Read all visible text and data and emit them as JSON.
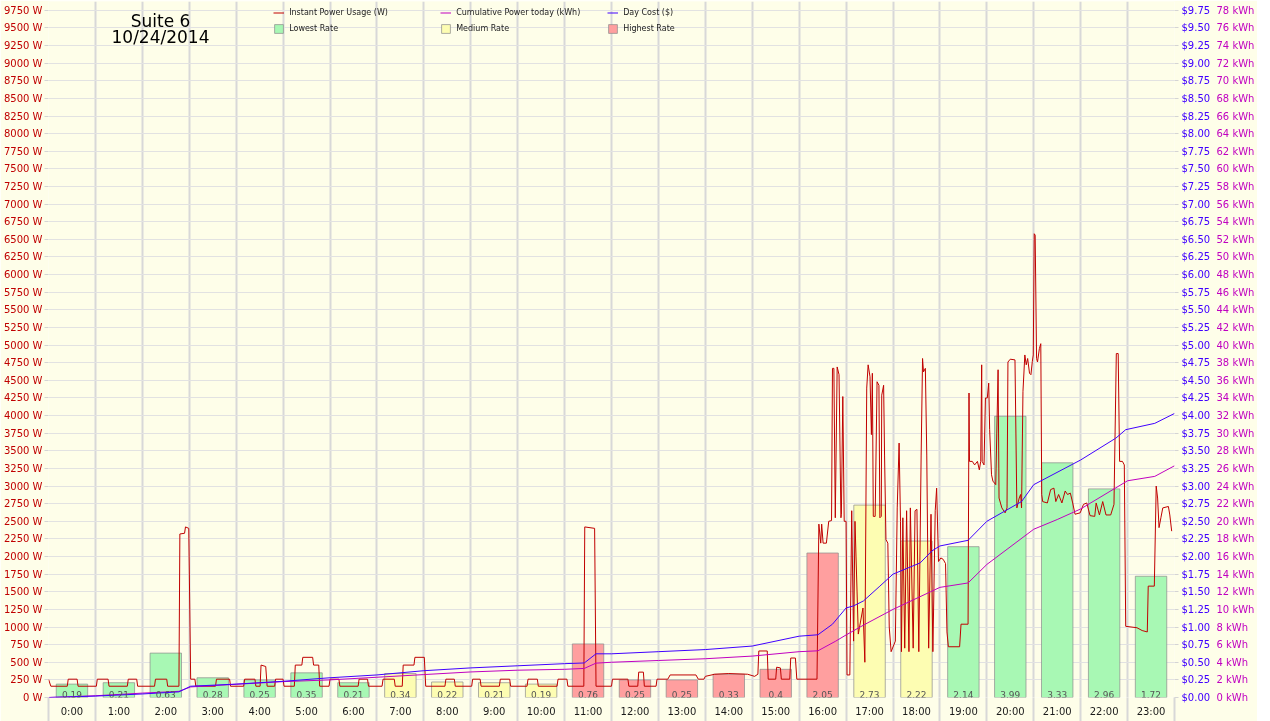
{
  "chart_data": {
    "type": "bar",
    "title": "Suite 6",
    "subtitle": "10/24/2014",
    "legend": "top",
    "grid": true,
    "xlim": [
      -0.5,
      23.5
    ],
    "xticks": [
      {
        "value": -0.5,
        "label": null
      },
      {
        "value": 0,
        "label": "0:00"
      },
      {
        "value": 0.5,
        "label": null
      },
      {
        "value": 1,
        "label": "1:00"
      },
      {
        "value": 1.5,
        "label": null
      },
      {
        "value": 2,
        "label": "2:00"
      },
      {
        "value": 2.5,
        "label": null
      },
      {
        "value": 3,
        "label": "3:00"
      },
      {
        "value": 3.5,
        "label": null
      },
      {
        "value": 4,
        "label": "4:00"
      },
      {
        "value": 4.5,
        "label": null
      },
      {
        "value": 5,
        "label": "5:00"
      },
      {
        "value": 5.5,
        "label": null
      },
      {
        "value": 6,
        "label": "6:00"
      },
      {
        "value": 6.5,
        "label": null
      },
      {
        "value": 7,
        "label": "7:00"
      },
      {
        "value": 7.5,
        "label": null
      },
      {
        "value": 8,
        "label": "8:00"
      },
      {
        "value": 8.5,
        "label": null
      },
      {
        "value": 9,
        "label": "9:00"
      },
      {
        "value": 9.5,
        "label": null
      },
      {
        "value": 10,
        "label": "10:00"
      },
      {
        "value": 10.5,
        "label": null
      },
      {
        "value": 11,
        "label": "11:00"
      },
      {
        "value": 11.5,
        "label": null
      },
      {
        "value": 12,
        "label": "12:00"
      },
      {
        "value": 12.5,
        "label": null
      },
      {
        "value": 13,
        "label": "13:00"
      },
      {
        "value": 13.5,
        "label": null
      },
      {
        "value": 14,
        "label": "14:00"
      },
      {
        "value": 14.5,
        "label": null
      },
      {
        "value": 15,
        "label": "15:00"
      },
      {
        "value": 15.5,
        "label": null
      },
      {
        "value": 16,
        "label": "16:00"
      },
      {
        "value": 16.5,
        "label": null
      },
      {
        "value": 17,
        "label": "17:00"
      },
      {
        "value": 17.5,
        "label": null
      },
      {
        "value": 18,
        "label": "18:00"
      },
      {
        "value": 18.5,
        "label": null
      },
      {
        "value": 19,
        "label": "19:00"
      },
      {
        "value": 19.5,
        "label": null
      },
      {
        "value": 20,
        "label": "20:00"
      },
      {
        "value": 20.5,
        "label": null
      },
      {
        "value": 21,
        "label": "21:00"
      },
      {
        "value": 21.5,
        "label": null
      },
      {
        "value": 22,
        "label": "22:00"
      },
      {
        "value": 22.5,
        "label": null
      },
      {
        "value": 23,
        "label": "23:00"
      },
      {
        "value": 23.5,
        "label": null
      }
    ],
    "ylim": [
      0,
      9875
    ],
    "yticks": [
      {
        "value": 0,
        "label": "0 W"
      },
      {
        "value": 250,
        "label": "250 W"
      },
      {
        "value": 500,
        "label": "500 W"
      },
      {
        "value": 750,
        "label": "750 W"
      },
      {
        "value": 1000,
        "label": "1000 W"
      },
      {
        "value": 1250,
        "label": "1250 W"
      },
      {
        "value": 1500,
        "label": "1500 W"
      },
      {
        "value": 1750,
        "label": "1750 W"
      },
      {
        "value": 2000,
        "label": "2000 W"
      },
      {
        "value": 2250,
        "label": "2250 W"
      },
      {
        "value": 2500,
        "label": "2500 W"
      },
      {
        "value": 2750,
        "label": "2750 W"
      },
      {
        "value": 3000,
        "label": "3000 W"
      },
      {
        "value": 3250,
        "label": "3250 W"
      },
      {
        "value": 3500,
        "label": "3500 W"
      },
      {
        "value": 3750,
        "label": "3750 W"
      },
      {
        "value": 4000,
        "label": "4000 W"
      },
      {
        "value": 4250,
        "label": "4250 W"
      },
      {
        "value": 4500,
        "label": "4500 W"
      },
      {
        "value": 4750,
        "label": "4750 W"
      },
      {
        "value": 5000,
        "label": "5000 W"
      },
      {
        "value": 5250,
        "label": "5250 W"
      },
      {
        "value": 5500,
        "label": "5500 W"
      },
      {
        "value": 5750,
        "label": "5750 W"
      },
      {
        "value": 6000,
        "label": "6000 W"
      },
      {
        "value": 6250,
        "label": "6250 W"
      },
      {
        "value": 6500,
        "label": "6500 W"
      },
      {
        "value": 6750,
        "label": "6750 W"
      },
      {
        "value": 7000,
        "label": "7000 W"
      },
      {
        "value": 7250,
        "label": "7250 W"
      },
      {
        "value": 7500,
        "label": "7500 W"
      },
      {
        "value": 7750,
        "label": "7750 W"
      },
      {
        "value": 8000,
        "label": "8000 W"
      },
      {
        "value": 8250,
        "label": "8250 W"
      },
      {
        "value": 8500,
        "label": "8500 W"
      },
      {
        "value": 8750,
        "label": "8750 W"
      },
      {
        "value": 9000,
        "label": "9000 W"
      },
      {
        "value": 9250,
        "label": "9250 W"
      },
      {
        "value": 9500,
        "label": "9500 W"
      },
      {
        "value": 9750,
        "label": "9750 W"
      }
    ],
    "y2lim": [
      0,
      9.875
    ],
    "y2ticks": [
      {
        "value": 0,
        "label": "$0.00"
      },
      {
        "value": 0.25,
        "label": "$0.25"
      },
      {
        "value": 0.5,
        "label": "$0.50"
      },
      {
        "value": 0.75,
        "label": "$0.75"
      },
      {
        "value": 1,
        "label": "$1.00"
      },
      {
        "value": 1.25,
        "label": "$1.25"
      },
      {
        "value": 1.5,
        "label": "$1.50"
      },
      {
        "value": 1.75,
        "label": "$1.75"
      },
      {
        "value": 2,
        "label": "$2.00"
      },
      {
        "value": 2.25,
        "label": "$2.25"
      },
      {
        "value": 2.5,
        "label": "$2.50"
      },
      {
        "value": 2.75,
        "label": "$2.75"
      },
      {
        "value": 3,
        "label": "$3.00"
      },
      {
        "value": 3.25,
        "label": "$3.25"
      },
      {
        "value": 3.5,
        "label": "$3.50"
      },
      {
        "value": 3.75,
        "label": "$3.75"
      },
      {
        "value": 4,
        "label": "$4.00"
      },
      {
        "value": 4.25,
        "label": "$4.25"
      },
      {
        "value": 4.5,
        "label": "$4.50"
      },
      {
        "value": 4.75,
        "label": "$4.75"
      },
      {
        "value": 5,
        "label": "$5.00"
      },
      {
        "value": 5.25,
        "label": "$5.25"
      },
      {
        "value": 5.5,
        "label": "$5.50"
      },
      {
        "value": 5.75,
        "label": "$5.75"
      },
      {
        "value": 6,
        "label": "$6.00"
      },
      {
        "value": 6.25,
        "label": "$6.25"
      },
      {
        "value": 6.5,
        "label": "$6.50"
      },
      {
        "value": 6.75,
        "label": "$6.75"
      },
      {
        "value": 7,
        "label": "$7.00"
      },
      {
        "value": 7.25,
        "label": "$7.25"
      },
      {
        "value": 7.5,
        "label": "$7.50"
      },
      {
        "value": 7.75,
        "label": "$7.75"
      },
      {
        "value": 8,
        "label": "$8.00"
      },
      {
        "value": 8.25,
        "label": "$8.25"
      },
      {
        "value": 8.5,
        "label": "$8.50"
      },
      {
        "value": 8.75,
        "label": "$8.75"
      },
      {
        "value": 9,
        "label": "$9.00"
      },
      {
        "value": 9.25,
        "label": "$9.25"
      },
      {
        "value": 9.5,
        "label": "$9.50"
      },
      {
        "value": 9.75,
        "label": "$9.75"
      }
    ],
    "y3lim": [
      0,
      79
    ],
    "y3ticks": [
      {
        "value": 0,
        "label": "0 kWh"
      },
      {
        "value": 2,
        "label": "2 kWh"
      },
      {
        "value": 4,
        "label": "4 kWh"
      },
      {
        "value": 6,
        "label": "6 kWh"
      },
      {
        "value": 8,
        "label": "8 kWh"
      },
      {
        "value": 10,
        "label": "10 kWh"
      },
      {
        "value": 12,
        "label": "12 kWh"
      },
      {
        "value": 14,
        "label": "14 kWh"
      },
      {
        "value": 16,
        "label": "16 kWh"
      },
      {
        "value": 18,
        "label": "18 kWh"
      },
      {
        "value": 20,
        "label": "20 kWh"
      },
      {
        "value": 22,
        "label": "22 kWh"
      },
      {
        "value": 24,
        "label": "24 kWh"
      },
      {
        "value": 26,
        "label": "26 kWh"
      },
      {
        "value": 28,
        "label": "28 kWh"
      },
      {
        "value": 30,
        "label": "30 kWh"
      },
      {
        "value": 32,
        "label": "32 kWh"
      },
      {
        "value": 34,
        "label": "34 kWh"
      },
      {
        "value": 36,
        "label": "36 kWh"
      },
      {
        "value": 38,
        "label": "38 kWh"
      },
      {
        "value": 40,
        "label": "40 kWh"
      },
      {
        "value": 42,
        "label": "42 kWh"
      },
      {
        "value": 44,
        "label": "44 kWh"
      },
      {
        "value": 46,
        "label": "46 kWh"
      },
      {
        "value": 48,
        "label": "48 kWh"
      },
      {
        "value": 50,
        "label": "50 kWh"
      },
      {
        "value": 52,
        "label": "52 kWh"
      },
      {
        "value": 54,
        "label": "54 kWh"
      },
      {
        "value": 56,
        "label": "56 kWh"
      },
      {
        "value": 58,
        "label": "58 kWh"
      },
      {
        "value": 60,
        "label": "60 kWh"
      },
      {
        "value": 62,
        "label": "62 kWh"
      },
      {
        "value": 64,
        "label": "64 kWh"
      },
      {
        "value": 66,
        "label": "66 kWh"
      },
      {
        "value": 68,
        "label": "68 kWh"
      },
      {
        "value": 70,
        "label": "70 kWh"
      },
      {
        "value": 72,
        "label": "72 kWh"
      },
      {
        "value": 74,
        "label": "74 kWh"
      },
      {
        "value": 76,
        "label": "76 kWh"
      },
      {
        "value": 78,
        "label": "78 kWh"
      }
    ],
    "series": [
      {
        "name": "Instant Power Usage (W)",
        "type": "line",
        "color": "#c00000",
        "x": [
          -0.5,
          -0.45,
          -0.1,
          -0.08,
          0.11,
          0.13,
          0.52,
          0.54,
          0.77,
          0.79,
          1.18,
          1.2,
          1.38,
          1.4,
          1.76,
          1.78,
          2.02,
          2.04,
          2.28,
          2.3,
          2.4,
          2.42,
          2.49,
          2.53,
          2.62,
          2.64,
          3.06,
          3.08,
          3.36,
          3.38,
          3.66,
          3.68,
          3.9,
          3.92,
          4.01,
          4.03,
          4.13,
          4.16,
          4.32,
          4.34,
          4.5,
          4.52,
          4.74,
          4.76,
          4.9,
          4.92,
          5.13,
          5.15,
          5.26,
          5.28,
          5.48,
          5.5,
          5.69,
          5.71,
          6.1,
          6.12,
          6.3,
          6.32,
          6.61,
          6.63,
          6.87,
          6.89,
          7.04,
          7.06,
          7.29,
          7.31,
          7.51,
          7.54,
          7.95,
          7.97,
          8.15,
          8.17,
          8.52,
          8.54,
          8.7,
          8.72,
          9.11,
          9.13,
          9.33,
          9.35,
          9.7,
          9.72,
          9.92,
          9.94,
          10.34,
          10.36,
          10.55,
          10.57,
          10.91,
          10.93,
          11.14,
          11.17,
          11.5,
          11.52,
          11.85,
          11.87,
          12.06,
          12.08,
          12.18,
          12.2,
          12.45,
          12.47,
          12.7,
          12.75,
          13.3,
          13.35,
          13.47,
          13.5,
          13.7,
          14,
          14.4,
          14.55,
          14.62,
          14.64,
          14.82,
          14.84,
          15,
          15.02,
          15.1,
          15.12,
          15.3,
          15.32,
          15.42,
          15.45,
          15.88,
          15.92,
          15.96,
          15.98,
          16.01,
          16.08,
          16.13,
          16.19,
          16.21,
          16.24,
          16.27,
          16.31,
          16.35,
          16.39,
          16.4,
          16.43,
          16.46,
          16.5,
          16.52,
          16.58,
          16.62,
          16.66,
          16.69,
          16.76,
          16.86,
          16.9,
          16.94,
          16.97,
          17.01,
          17.04,
          17.06,
          17.08,
          17.12,
          17.16,
          17.2,
          17.22,
          17.25,
          17.26,
          17.3,
          17.32,
          17.35,
          17.39,
          17.42,
          17.46,
          17.55,
          17.59,
          17.63,
          17.66,
          17.68,
          17.71,
          17.75,
          17.79,
          17.84,
          17.87,
          17.93,
          17.97,
          18.01,
          18.05,
          18.1,
          18.13,
          18.15,
          18.19,
          18.22,
          18.26,
          18.31,
          18.35,
          18.4,
          18.43,
          18.47,
          18.52,
          18.57,
          18.62,
          18.65,
          18.68,
          18.92,
          18.95,
          19.1,
          19.12,
          19.13,
          19.19,
          19.24,
          19.3,
          19.34,
          19.37,
          19.39,
          19.4,
          19.44,
          19.47,
          19.51,
          19.54,
          19.56,
          19.6,
          19.63,
          19.69,
          19.74,
          19.76,
          19.82,
          19.89,
          19.93,
          19.95,
          20,
          20.1,
          20.14,
          20.19,
          20.22,
          20.24,
          20.27,
          20.31,
          20.34,
          20.37,
          20.41,
          20.44,
          20.47,
          20.49,
          20.51,
          20.53,
          20.56,
          20.58,
          20.62,
          20.65,
          20.67,
          20.69,
          20.79,
          20.86,
          20.93,
          20.97,
          21.03,
          21.1,
          21.17,
          21.22,
          21.28,
          21.33,
          21.38,
          21.49,
          21.56,
          21.63,
          21.7,
          21.8,
          21.83,
          21.9,
          21.97,
          22.04,
          22.14,
          22.21,
          22.26,
          22.3,
          22.33,
          22.39,
          22.43,
          22.46,
          22.7,
          22.81,
          22.92,
          22.94,
          23.07,
          23.11,
          23.14,
          23.17,
          23.21,
          23.25,
          23.37,
          23.4,
          23.44
        ],
        "values": [
          260,
          160,
          160,
          260,
          260,
          160,
          160,
          260,
          260,
          160,
          160,
          260,
          260,
          160,
          160,
          260,
          260,
          160,
          160,
          2320,
          2330,
          2420,
          2400,
          260,
          260,
          160,
          160,
          260,
          260,
          160,
          160,
          260,
          260,
          160,
          160,
          460,
          440,
          160,
          160,
          260,
          260,
          160,
          160,
          460,
          460,
          570,
          570,
          460,
          460,
          160,
          160,
          260,
          260,
          160,
          160,
          260,
          260,
          160,
          160,
          260,
          260,
          160,
          160,
          460,
          460,
          570,
          570,
          160,
          160,
          260,
          260,
          160,
          160,
          260,
          260,
          160,
          160,
          260,
          260,
          160,
          160,
          260,
          260,
          160,
          160,
          260,
          260,
          160,
          160,
          2420,
          2400,
          160,
          160,
          260,
          260,
          160,
          160,
          360,
          360,
          160,
          160,
          260,
          260,
          320,
          320,
          260,
          260,
          300,
          330,
          340,
          330,
          300,
          330,
          660,
          660,
          260,
          260,
          430,
          420,
          260,
          260,
          560,
          560,
          260,
          260,
          2460,
          2190,
          2460,
          2190,
          2190,
          2500,
          2510,
          4670,
          4670,
          2550,
          4690,
          4580,
          2550,
          2600,
          4270,
          2500,
          2500,
          320,
          320,
          2650,
          800,
          2500,
          900,
          1270,
          500,
          4390,
          4720,
          4550,
          3730,
          4600,
          2570,
          2570,
          4480,
          4430,
          2550,
          2570,
          4290,
          4430,
          3440,
          2240,
          2190,
          1000,
          650,
          800,
          2690,
          3610,
          2500,
          650,
          2550,
          700,
          2650,
          650,
          2690,
          700,
          2650,
          2670,
          650,
          3440,
          4810,
          4620,
          4670,
          3440,
          700,
          2600,
          650,
          2650,
          2970,
          1930,
          1980,
          1960,
          1900,
          930,
          720,
          720,
          1040,
          1040,
          4320,
          3350,
          3350,
          3300,
          3350,
          3230,
          3350,
          4720,
          3350,
          3300,
          4250,
          4250,
          4460,
          3800,
          3160,
          3070,
          3020,
          4650,
          2830,
          2690,
          2620,
          2690,
          4760,
          4800,
          4790,
          2690,
          2830,
          2880,
          2690,
          4340,
          4860,
          4720,
          4810,
          4600,
          4580,
          4770,
          4860,
          6580,
          6560,
          4810,
          4760,
          4950,
          5020,
          2880,
          2780,
          2760,
          2950,
          2970,
          2780,
          2880,
          2760,
          2930,
          2880,
          2900,
          2760,
          2600,
          2620,
          2740,
          2760,
          2580,
          2570,
          2760,
          2590,
          2780,
          2590,
          2590,
          2740,
          4880,
          4880,
          3350,
          3350,
          3300,
          1010,
          990,
          950,
          930,
          1580,
          1580,
          3000,
          2830,
          2410,
          2550,
          2690,
          2710,
          2590,
          2360
        ]
      },
      {
        "name": "Cumulative Power today (kWh)",
        "type": "line",
        "color": "#c000c0",
        "axis": "y3",
        "x": [
          -0.5,
          0.5,
          1.5,
          2.28,
          2.53,
          3.5,
          4.5,
          5.5,
          6.5,
          7.5,
          8.5,
          9.5,
          10.5,
          10.92,
          11.17,
          11.5,
          12.5,
          13.5,
          14.5,
          15.5,
          15.9,
          16.28,
          16.5,
          16.9,
          17.5,
          18.3,
          18.5,
          19.1,
          19.5,
          20.5,
          21,
          21.5,
          22.25,
          22.5,
          23.08,
          23.5
        ],
        "values": [
          0,
          0.2,
          0.5,
          0.7,
          1.2,
          1.5,
          1.8,
          2,
          2.3,
          2.6,
          2.9,
          3.1,
          3.2,
          3.3,
          3.9,
          4,
          4.2,
          4.4,
          4.7,
          5.2,
          5.3,
          6.4,
          7.1,
          8.3,
          10,
          12,
          12.5,
          13,
          15.1,
          19.1,
          20.2,
          21.4,
          23.8,
          24.6,
          25.1,
          26.3
        ]
      },
      {
        "name": "Day Cost ($)",
        "type": "line",
        "color": "#4000ff",
        "axis": "y2",
        "x": [
          -0.5,
          0.5,
          1.5,
          2.28,
          2.53,
          3.5,
          4.5,
          5.5,
          6.5,
          7.5,
          8.5,
          9.5,
          10.5,
          10.92,
          11.17,
          11.5,
          12.5,
          13.5,
          14.5,
          15.5,
          15.9,
          16.21,
          16.5,
          16.66,
          16.87,
          17.22,
          17.5,
          18.08,
          18.33,
          18.5,
          19.1,
          19.5,
          20.24,
          20.5,
          21.5,
          22.25,
          22.46,
          23.08,
          23.5
        ],
        "values": [
          0,
          0.02,
          0.05,
          0.08,
          0.16,
          0.19,
          0.23,
          0.28,
          0.32,
          0.38,
          0.42,
          0.45,
          0.48,
          0.49,
          0.62,
          0.62,
          0.65,
          0.68,
          0.73,
          0.87,
          0.89,
          1.04,
          1.27,
          1.3,
          1.37,
          1.58,
          1.75,
          1.91,
          2.08,
          2.15,
          2.23,
          2.5,
          2.78,
          3.02,
          3.37,
          3.68,
          3.8,
          3.89,
          4.03
        ]
      },
      {
        "name": "Lowest Rate",
        "color": "#a8f8b4",
        "axis": "y2",
        "x": [
          0,
          1,
          2,
          3,
          4,
          5,
          6,
          19,
          20,
          21,
          22,
          23
        ],
        "values": [
          0.19,
          0.21,
          0.63,
          0.28,
          0.25,
          0.35,
          0.21,
          2.14,
          3.99,
          3.33,
          2.96,
          1.72
        ],
        "value_labels": [
          "0.19",
          "0.21",
          "0.63",
          "0.28",
          "0.25",
          "0.35",
          "0.21",
          "2.14",
          "3.99",
          "3.33",
          "2.96",
          "1.72"
        ]
      },
      {
        "name": "Medium Rate",
        "color": "#fdfdb2",
        "axis": "y2",
        "x": [
          7,
          8,
          9,
          10,
          17,
          18
        ],
        "values": [
          0.34,
          0.22,
          0.21,
          0.19,
          2.73,
          2.22
        ],
        "value_labels": [
          "0.34",
          "0.22",
          "0.21",
          "0.19",
          "2.73",
          "2.22"
        ]
      },
      {
        "name": "Highest Rate",
        "color": "#ff9f9f",
        "axis": "y2",
        "x": [
          11,
          12,
          13,
          14,
          15,
          16
        ],
        "values": [
          0.76,
          0.25,
          0.25,
          0.33,
          0.4,
          2.05
        ],
        "value_labels": [
          "0.76",
          "0.25",
          "0.25",
          "0.33",
          "0.4",
          "2.05"
        ]
      }
    ]
  }
}
